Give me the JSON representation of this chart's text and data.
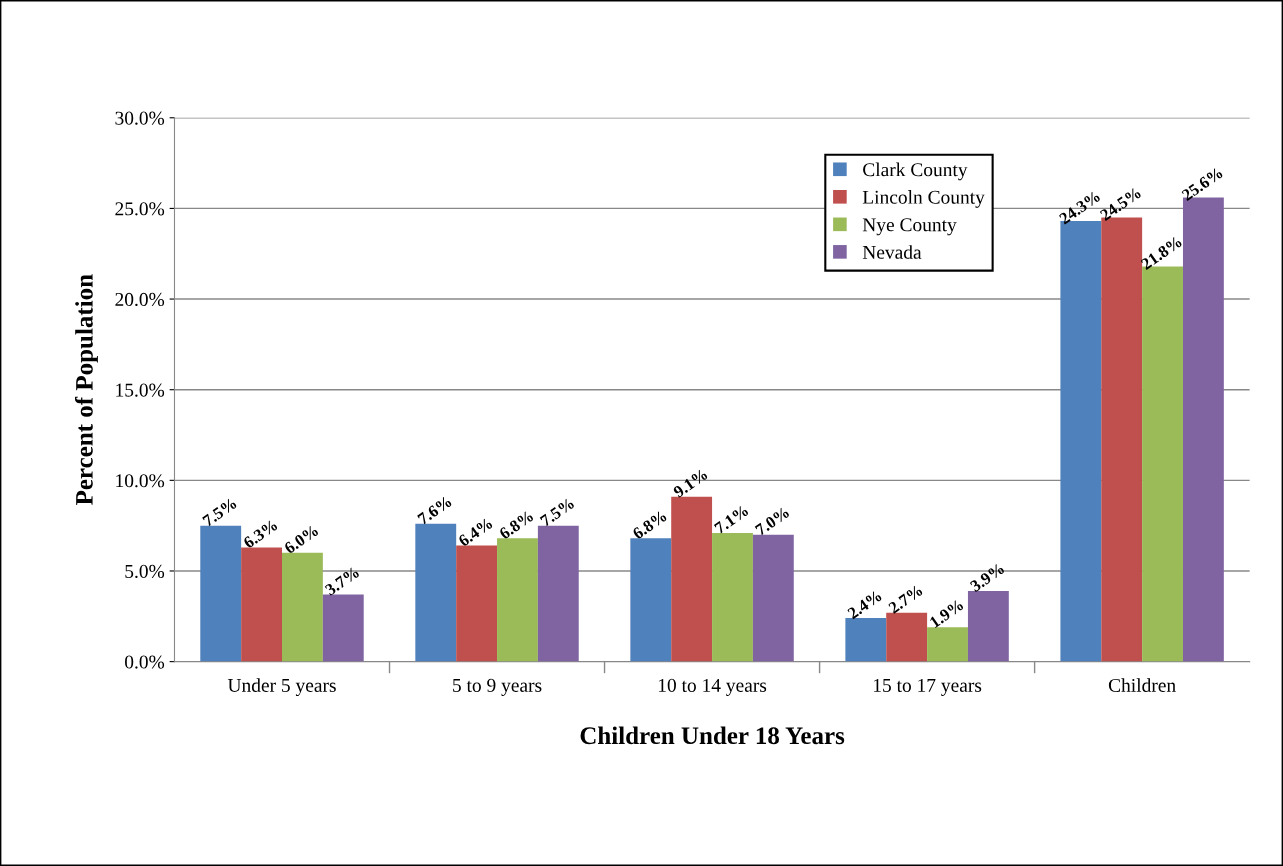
{
  "chart_data": {
    "type": "bar",
    "xlabel": "Children Under 18 Years",
    "ylabel": "Percent of Population",
    "categories": [
      "Under 5 years",
      "5 to 9 years",
      "10 to 14 years",
      "15 to 17 years",
      "Children"
    ],
    "series": [
      {
        "name": "Clark County",
        "color": "#4f81bd",
        "values": [
          7.5,
          7.6,
          6.8,
          2.4,
          24.3
        ],
        "value_labels": [
          "7.5%",
          "7.6%",
          "6.8%",
          "2.4%",
          "24.3%"
        ]
      },
      {
        "name": "Lincoln County",
        "color": "#c0504d",
        "values": [
          6.3,
          6.4,
          9.1,
          2.7,
          24.5
        ],
        "value_labels": [
          "6.3%",
          "6.4%",
          "9.1%",
          "2.7%",
          "24.5%"
        ]
      },
      {
        "name": "Nye County",
        "color": "#9bbb59",
        "values": [
          6.0,
          6.8,
          7.1,
          1.9,
          21.8
        ],
        "value_labels": [
          "6.0%",
          "6.8%",
          "7.1%",
          "1.9%",
          "21.8%"
        ]
      },
      {
        "name": "Nevada",
        "color": "#8064a2",
        "values": [
          3.7,
          7.5,
          7.0,
          3.9,
          25.6
        ],
        "value_labels": [
          "3.7%",
          "7.5%",
          "7.0%",
          "3.9%",
          "25.6%"
        ]
      }
    ],
    "ylim": [
      0,
      30
    ],
    "yticks": [
      {
        "value": 0,
        "label": "0.0%"
      },
      {
        "value": 5,
        "label": "5.0%"
      },
      {
        "value": 10,
        "label": "10.0%"
      },
      {
        "value": 15,
        "label": "15.0%"
      },
      {
        "value": 20,
        "label": "20.0%"
      },
      {
        "value": 25,
        "label": "25.0%"
      },
      {
        "value": 30,
        "label": "30.0%"
      }
    ],
    "grid": "y",
    "legend": "top right"
  }
}
